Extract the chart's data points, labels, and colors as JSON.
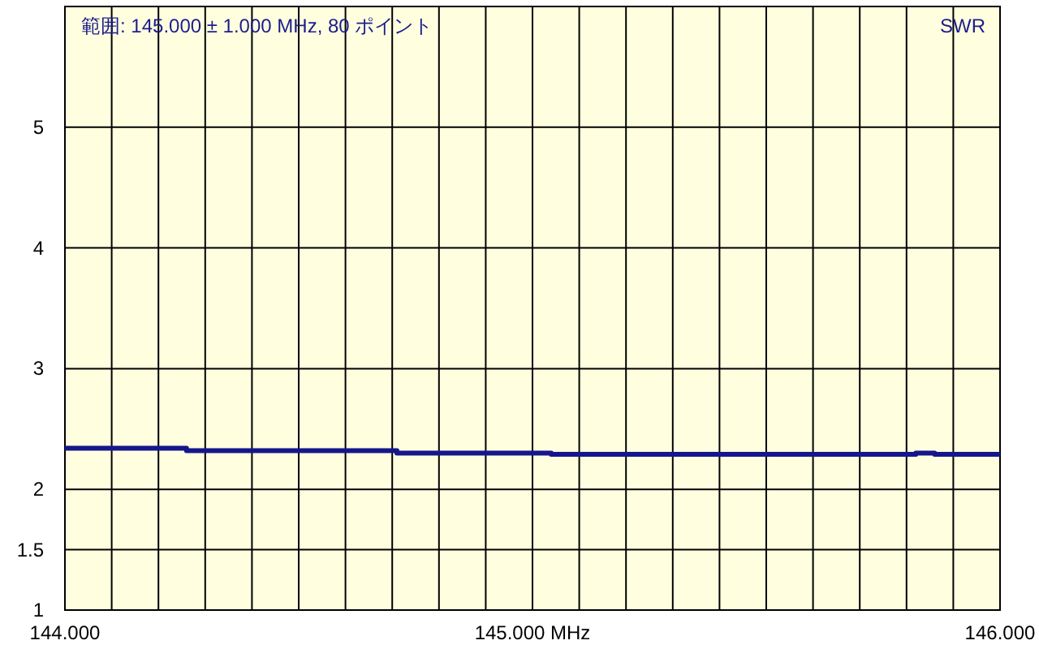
{
  "chart_data": {
    "type": "step",
    "annotations": [
      "範囲: 145.000 ± 1.000 MHz, 80 ポイント",
      "SWR"
    ],
    "series": [
      {
        "color": "#16168c",
        "x": [
          144.0,
          144.26,
          144.71,
          145.04,
          145.82,
          145.86,
          146.0
        ],
        "values": [
          2.34,
          2.32,
          2.3,
          2.29,
          2.3,
          2.29,
          2.29
        ]
      }
    ],
    "xlim": [
      144.0,
      146.0
    ],
    "xticks": [
      {
        "value": 144.0,
        "label": "144.000"
      },
      {
        "value": 144.1,
        "label": null
      },
      {
        "value": 144.2,
        "label": null
      },
      {
        "value": 144.3,
        "label": null
      },
      {
        "value": 144.4,
        "label": null
      },
      {
        "value": 144.5,
        "label": null
      },
      {
        "value": 144.6,
        "label": null
      },
      {
        "value": 144.7,
        "label": null
      },
      {
        "value": 144.8,
        "label": null
      },
      {
        "value": 144.9,
        "label": null
      },
      {
        "value": 145.0,
        "label": "145.000 MHz"
      },
      {
        "value": 145.1,
        "label": null
      },
      {
        "value": 145.2,
        "label": null
      },
      {
        "value": 145.3,
        "label": null
      },
      {
        "value": 145.4,
        "label": null
      },
      {
        "value": 145.5,
        "label": null
      },
      {
        "value": 145.6,
        "label": null
      },
      {
        "value": 145.7,
        "label": null
      },
      {
        "value": 145.8,
        "label": null
      },
      {
        "value": 145.9,
        "label": null
      },
      {
        "value": 146.0,
        "label": "146.000"
      }
    ],
    "ylim": [
      1,
      6
    ],
    "yticks": [
      1,
      1.5,
      2,
      3,
      4,
      5
    ],
    "grid": true,
    "line_style": "solid",
    "marker": "none"
  }
}
